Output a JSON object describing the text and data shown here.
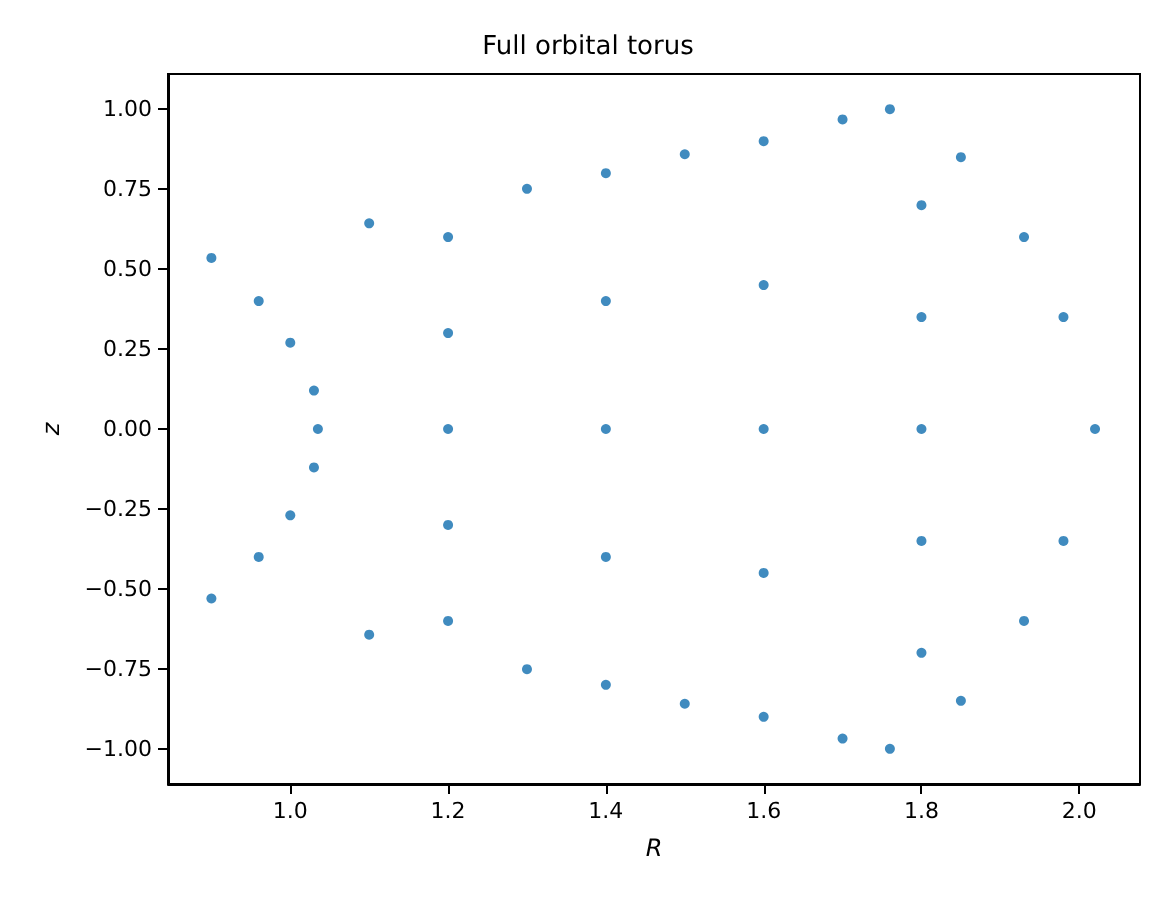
{
  "chart_data": {
    "type": "scatter",
    "title": "Full orbital torus",
    "xlabel": "R",
    "ylabel": "z",
    "xlim": [
      0.845,
      2.077
    ],
    "ylim": [
      -1.11,
      1.11
    ],
    "xticks": [
      {
        "value": 1,
        "label": "1.0"
      },
      {
        "value": 1.2,
        "label": "1.2"
      },
      {
        "value": 1.4,
        "label": "1.4"
      },
      {
        "value": 1.6,
        "label": "1.6"
      },
      {
        "value": 1.8,
        "label": "1.8"
      },
      {
        "value": 2,
        "label": "2.0"
      }
    ],
    "yticks": [
      {
        "value": -1,
        "label": "−1.00"
      },
      {
        "value": -0.75,
        "label": "−0.75"
      },
      {
        "value": -0.5,
        "label": "−0.50"
      },
      {
        "value": -0.25,
        "label": "−0.25"
      },
      {
        "value": 0,
        "label": "0.00"
      },
      {
        "value": 0.25,
        "label": "0.25"
      },
      {
        "value": 0.5,
        "label": "0.50"
      },
      {
        "value": 0.75,
        "label": "0.75"
      },
      {
        "value": 1,
        "label": "1.00"
      }
    ],
    "grid": false,
    "marker": "circle",
    "series": [
      {
        "color": "#1f77b4",
        "x": [
          0.9,
          1.1,
          1.3,
          1.5,
          1.7,
          1.76,
          1.1,
          1.3,
          1.5,
          1.7,
          1.76,
          1.85,
          1.93,
          1.98,
          2.02,
          1.98,
          1.93,
          1.85,
          0.96,
          1.0,
          1.03,
          1.035,
          1.03,
          1.0,
          0.96,
          0.9,
          1.2,
          1.2,
          1.2,
          1.2,
          1.2,
          1.4,
          1.4,
          1.4,
          1.4,
          1.4,
          1.6,
          1.6,
          1.6,
          1.6,
          1.6,
          1.8,
          1.8,
          1.8,
          1.8,
          1.8
        ],
        "values": [
          0.535,
          0.643,
          0.751,
          0.859,
          0.968,
          1.0,
          -0.643,
          -0.751,
          -0.859,
          -0.968,
          -1.0,
          0.85,
          0.6,
          0.35,
          0,
          -0.35,
          -0.6,
          -0.85,
          0.4,
          0.27,
          0.12,
          0,
          -0.12,
          -0.27,
          -0.4,
          -0.53,
          0.6,
          0.3,
          0,
          -0.3,
          -0.6,
          0.8,
          0.4,
          0,
          -0.4,
          -0.8,
          0.9,
          0.45,
          0,
          -0.45,
          -0.9,
          0.7,
          0.35,
          0,
          -0.35,
          -0.7
        ]
      }
    ]
  }
}
